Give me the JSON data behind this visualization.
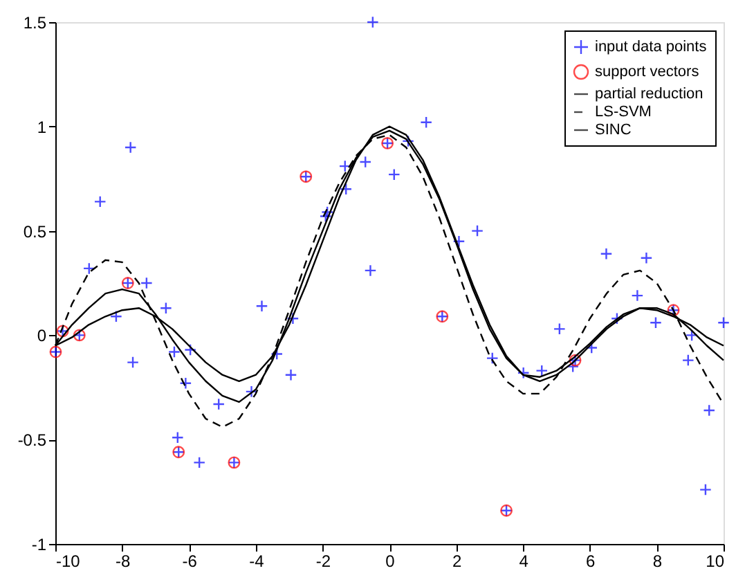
{
  "chart_data": {
    "type": "line",
    "xlim": [
      -10,
      10
    ],
    "xticks": [
      -10,
      -8,
      -6,
      -4,
      -2,
      0,
      2,
      4,
      6,
      8,
      10
    ],
    "ylim": [
      -1,
      1.5
    ],
    "yticks": [
      -1,
      -0.5,
      0,
      0.5,
      1,
      1.5
    ],
    "grid": false,
    "legend": "top right",
    "series": [
      {
        "name": "input data points",
        "type": "scatter",
        "marker": "cross",
        "color": "#0000ff",
        "x": [
          -9.99,
          -9.78,
          -9.28,
          -8.99,
          -8.66,
          -8.18,
          -7.83,
          -7.75,
          -7.68,
          -7.27,
          -6.69,
          -6.44,
          -6.34,
          -6.31,
          -6.1,
          -5.96,
          -5.69,
          -5.11,
          -4.65,
          -4.13,
          -3.82,
          -3.37,
          -2.95,
          -2.89,
          -2.5,
          -1.91,
          -1.86,
          -1.33,
          -1.3,
          -0.72,
          -0.57,
          -0.5,
          -0.06,
          0.14,
          0.56,
          1.1,
          1.58,
          2.08,
          2.63,
          3.08,
          3.5,
          4.01,
          4.56,
          5.09,
          5.49,
          5.56,
          6.05,
          6.49,
          6.81,
          7.42,
          7.69,
          7.97,
          8.5,
          8.94,
          9.05,
          9.46,
          9.57,
          10.0
        ],
        "values": [
          -0.08,
          0.02,
          0.0,
          0.32,
          0.64,
          0.09,
          0.25,
          0.9,
          -0.13,
          0.25,
          0.13,
          -0.08,
          -0.49,
          -0.56,
          -0.23,
          -0.07,
          -0.61,
          -0.33,
          -0.61,
          -0.27,
          0.14,
          -0.09,
          -0.19,
          0.08,
          0.76,
          0.57,
          0.59,
          0.81,
          0.7,
          0.83,
          0.31,
          1.5,
          0.92,
          0.77,
          0.93,
          1.02,
          0.09,
          0.45,
          0.5,
          -0.11,
          -0.84,
          -0.18,
          -0.17,
          0.03,
          -0.15,
          -0.12,
          -0.06,
          0.39,
          0.08,
          0.19,
          0.37,
          0.06,
          0.12,
          -0.12,
          0.0,
          -0.74,
          -0.36,
          0.06
        ]
      },
      {
        "name": "support vectors",
        "type": "scatter",
        "marker": "circle",
        "color": "#ff0000",
        "x": [
          -9.99,
          -9.78,
          -9.28,
          -7.83,
          -6.31,
          -4.65,
          -2.5,
          -0.06,
          1.58,
          3.5,
          5.56,
          8.5
        ],
        "values": [
          -0.08,
          0.02,
          0.0,
          0.25,
          -0.56,
          -0.61,
          0.76,
          0.92,
          0.09,
          -0.84,
          -0.12,
          0.12
        ]
      },
      {
        "name": "partial reduction",
        "marker": "none",
        "line_style": "solid",
        "color": "#000000",
        "x": [
          -10,
          -9.5,
          -9,
          -8.5,
          -8,
          -7.5,
          -7,
          -6.5,
          -6,
          -5.5,
          -5,
          -4.5,
          -4,
          -3.5,
          -3,
          -2.5,
          -2,
          -1.5,
          -1,
          -0.5,
          0,
          0.5,
          1,
          1.5,
          2,
          2.5,
          3,
          3.5,
          4,
          4.5,
          5,
          5.5,
          6,
          6.5,
          7,
          7.5,
          8,
          8.5,
          9,
          9.5,
          10
        ],
        "values": [
          -0.05,
          0.05,
          0.13,
          0.2,
          0.22,
          0.2,
          0.1,
          -0.02,
          -0.13,
          -0.22,
          -0.29,
          -0.32,
          -0.26,
          -0.12,
          0.08,
          0.3,
          0.5,
          0.7,
          0.85,
          0.95,
          0.98,
          0.94,
          0.82,
          0.65,
          0.44,
          0.22,
          0.03,
          -0.11,
          -0.19,
          -0.2,
          -0.17,
          -0.11,
          -0.04,
          0.04,
          0.1,
          0.13,
          0.13,
          0.1,
          0.03,
          -0.05,
          -0.12
        ]
      },
      {
        "name": "LS-SVM",
        "marker": "none",
        "line_style": "dashed",
        "color": "#000000",
        "x": [
          -10,
          -9.5,
          -9,
          -8.5,
          -8,
          -7.5,
          -7,
          -6.5,
          -6,
          -5.5,
          -5,
          -4.5,
          -4,
          -3.5,
          -3,
          -2.5,
          -2,
          -1.5,
          -1,
          -0.5,
          0,
          0.5,
          1,
          1.5,
          2,
          2.5,
          3,
          3.5,
          4,
          4.5,
          5,
          5.5,
          6,
          6.5,
          7,
          7.5,
          8,
          8.5,
          9,
          9.5,
          10
        ],
        "values": [
          -0.05,
          0.15,
          0.3,
          0.36,
          0.35,
          0.25,
          0.07,
          -0.12,
          -0.28,
          -0.4,
          -0.44,
          -0.4,
          -0.28,
          -0.1,
          0.12,
          0.35,
          0.56,
          0.73,
          0.86,
          0.94,
          0.96,
          0.9,
          0.76,
          0.56,
          0.33,
          0.1,
          -0.1,
          -0.22,
          -0.28,
          -0.28,
          -0.2,
          -0.07,
          0.08,
          0.2,
          0.29,
          0.31,
          0.25,
          0.12,
          -0.05,
          -0.2,
          -0.33
        ]
      },
      {
        "name": "SINC",
        "marker": "none",
        "line_style": "solid",
        "color": "#000000",
        "x": [
          -10,
          -9.5,
          -9,
          -8.5,
          -8,
          -7.5,
          -7,
          -6.5,
          -6,
          -5.5,
          -5,
          -4.5,
          -4,
          -3.5,
          -3,
          -2.5,
          -2,
          -1.5,
          -1,
          -0.5,
          0,
          0.5,
          1,
          1.5,
          2,
          2.5,
          3,
          3.5,
          4,
          4.5,
          5,
          5.5,
          6,
          6.5,
          7,
          7.5,
          8,
          8.5,
          9,
          9.5,
          10
        ],
        "values": [
          -0.05,
          -0.01,
          0.05,
          0.09,
          0.12,
          0.13,
          0.09,
          0.03,
          -0.05,
          -0.13,
          -0.19,
          -0.22,
          -0.19,
          -0.1,
          0.05,
          0.24,
          0.45,
          0.66,
          0.84,
          0.96,
          1.0,
          0.96,
          0.84,
          0.66,
          0.45,
          0.24,
          0.05,
          -0.1,
          -0.19,
          -0.22,
          -0.19,
          -0.13,
          -0.05,
          0.03,
          0.09,
          0.13,
          0.12,
          0.09,
          0.05,
          -0.01,
          -0.05
        ]
      }
    ]
  }
}
